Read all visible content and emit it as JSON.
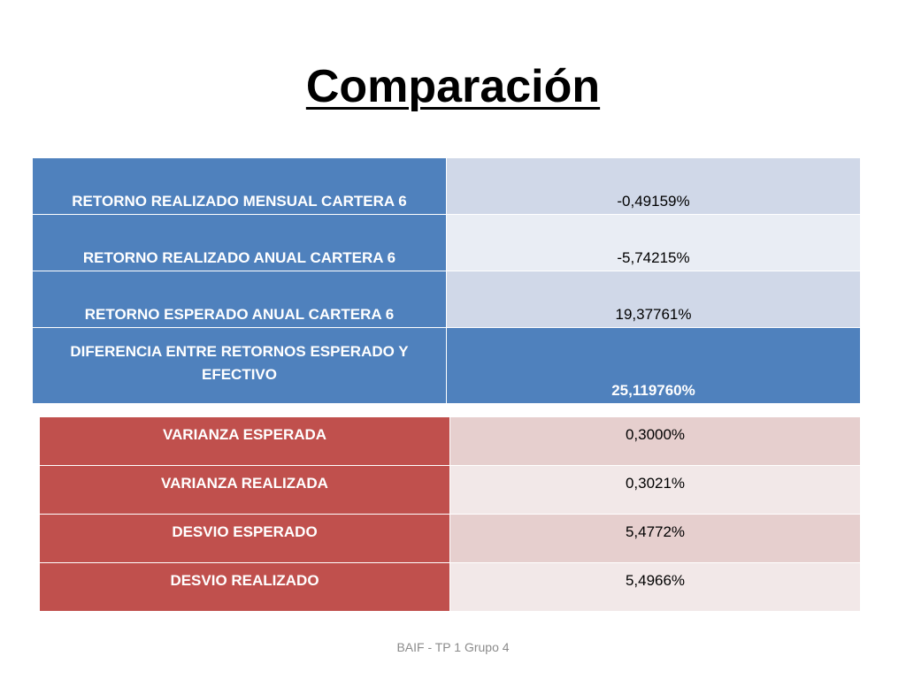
{
  "slide": {
    "title": "Comparación",
    "footer": "BAIF - TP 1 Grupo 4"
  },
  "returns_table": {
    "rows": [
      {
        "label": "RETORNO REALIZADO MENSUAL CARTERA 6",
        "value": "-0,49159%"
      },
      {
        "label": "RETORNO REALIZADO ANUAL CARTERA 6",
        "value": "-5,74215%"
      },
      {
        "label": "RETORNO ESPERADO ANUAL CARTERA 6",
        "value": "19,37761%"
      },
      {
        "label": "DIFERENCIA ENTRE RETORNOS ESPERADO Y EFECTIVO",
        "value": "25,119760%"
      }
    ]
  },
  "variance_table": {
    "rows": [
      {
        "label": "VARIANZA ESPERADA",
        "value": "0,3000%"
      },
      {
        "label": "VARIANZA REALIZADA",
        "value": "0,3021%"
      },
      {
        "label": "DESVIO ESPERADO",
        "value": "5,4772%"
      },
      {
        "label": "DESVIO REALIZADO",
        "value": "5,4966%"
      }
    ]
  },
  "colors": {
    "blue_header": "#4f81bd",
    "blue_light": "#d0d8e8",
    "blue_lighter": "#e9edf4",
    "red_header": "#c0504d",
    "red_light": "#e6cfce",
    "red_lighter": "#f2e8e8"
  }
}
